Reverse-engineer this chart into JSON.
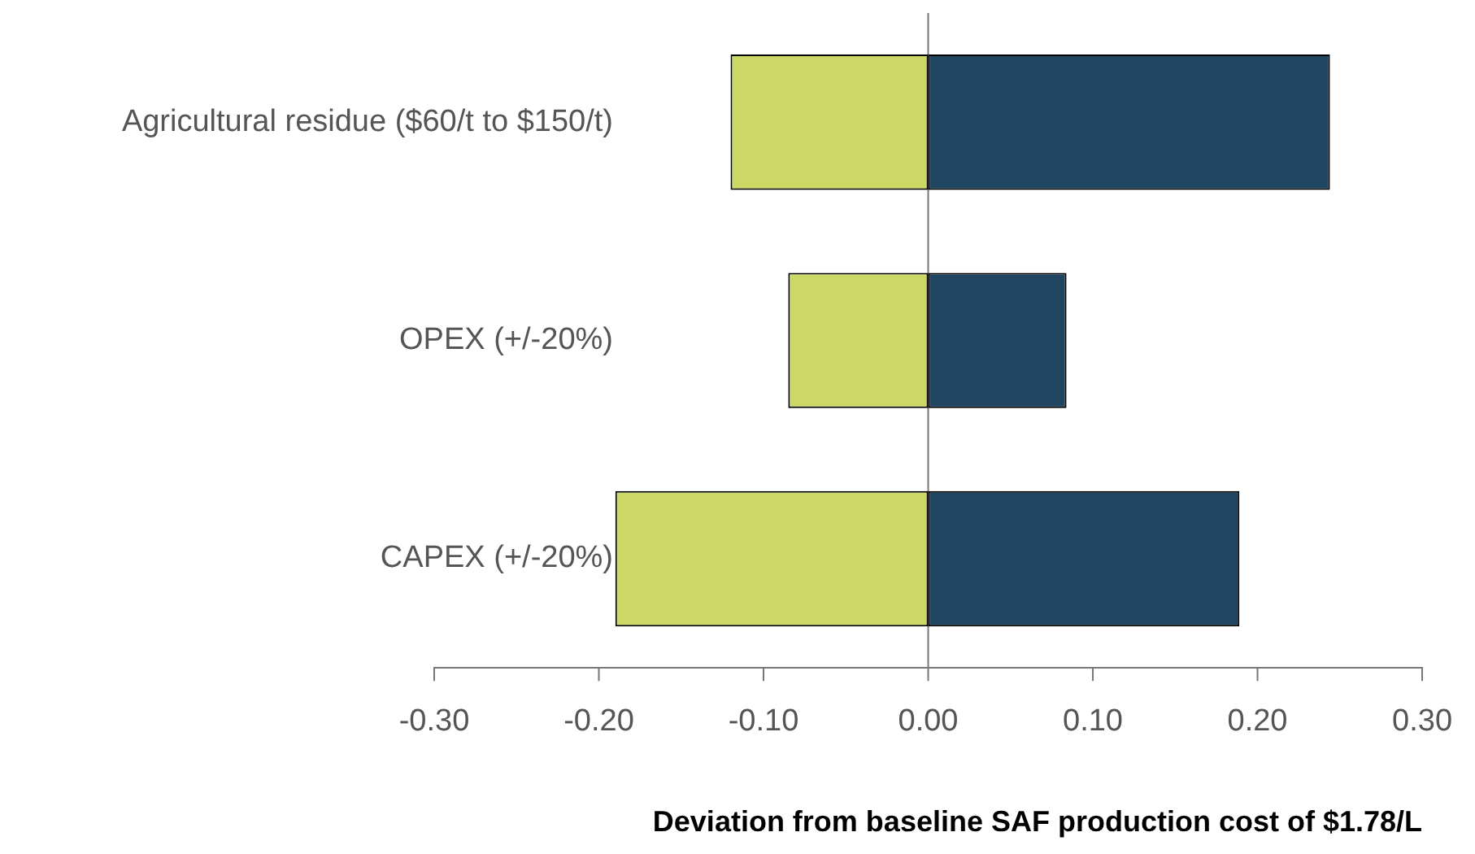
{
  "chart_data": {
    "type": "bar",
    "orientation": "horizontal",
    "stacked": true,
    "categories": [
      "Agricultural residue ($60/t to $150/t)",
      "OPEX (+/-20%)",
      "CAPEX (+/-20%)"
    ],
    "series": [
      {
        "color": "#ccd865",
        "values": [
          -0.12,
          -0.085,
          -0.19
        ]
      },
      {
        "color": "#1f4560",
        "values": [
          0.244,
          0.084,
          0.189
        ]
      }
    ],
    "xlim": [
      -0.3,
      0.3
    ],
    "xticks": [
      {
        "value": -0.3,
        "label": "-0.30"
      },
      {
        "value": -0.2,
        "label": "-0.20"
      },
      {
        "value": -0.1,
        "label": "-0.10"
      },
      {
        "value": 0,
        "label": "0.00"
      },
      {
        "value": 0.1,
        "label": "0.10"
      },
      {
        "value": 0.2,
        "label": "0.20"
      },
      {
        "value": 0.3,
        "label": "0.30"
      }
    ],
    "xlabel": "Deviation from baseline SAF production cost of $1.78/L",
    "ref_lines": [
      {
        "axis": "x",
        "value": 0,
        "color": "#777777"
      }
    ],
    "grid": false,
    "legend": false
  }
}
